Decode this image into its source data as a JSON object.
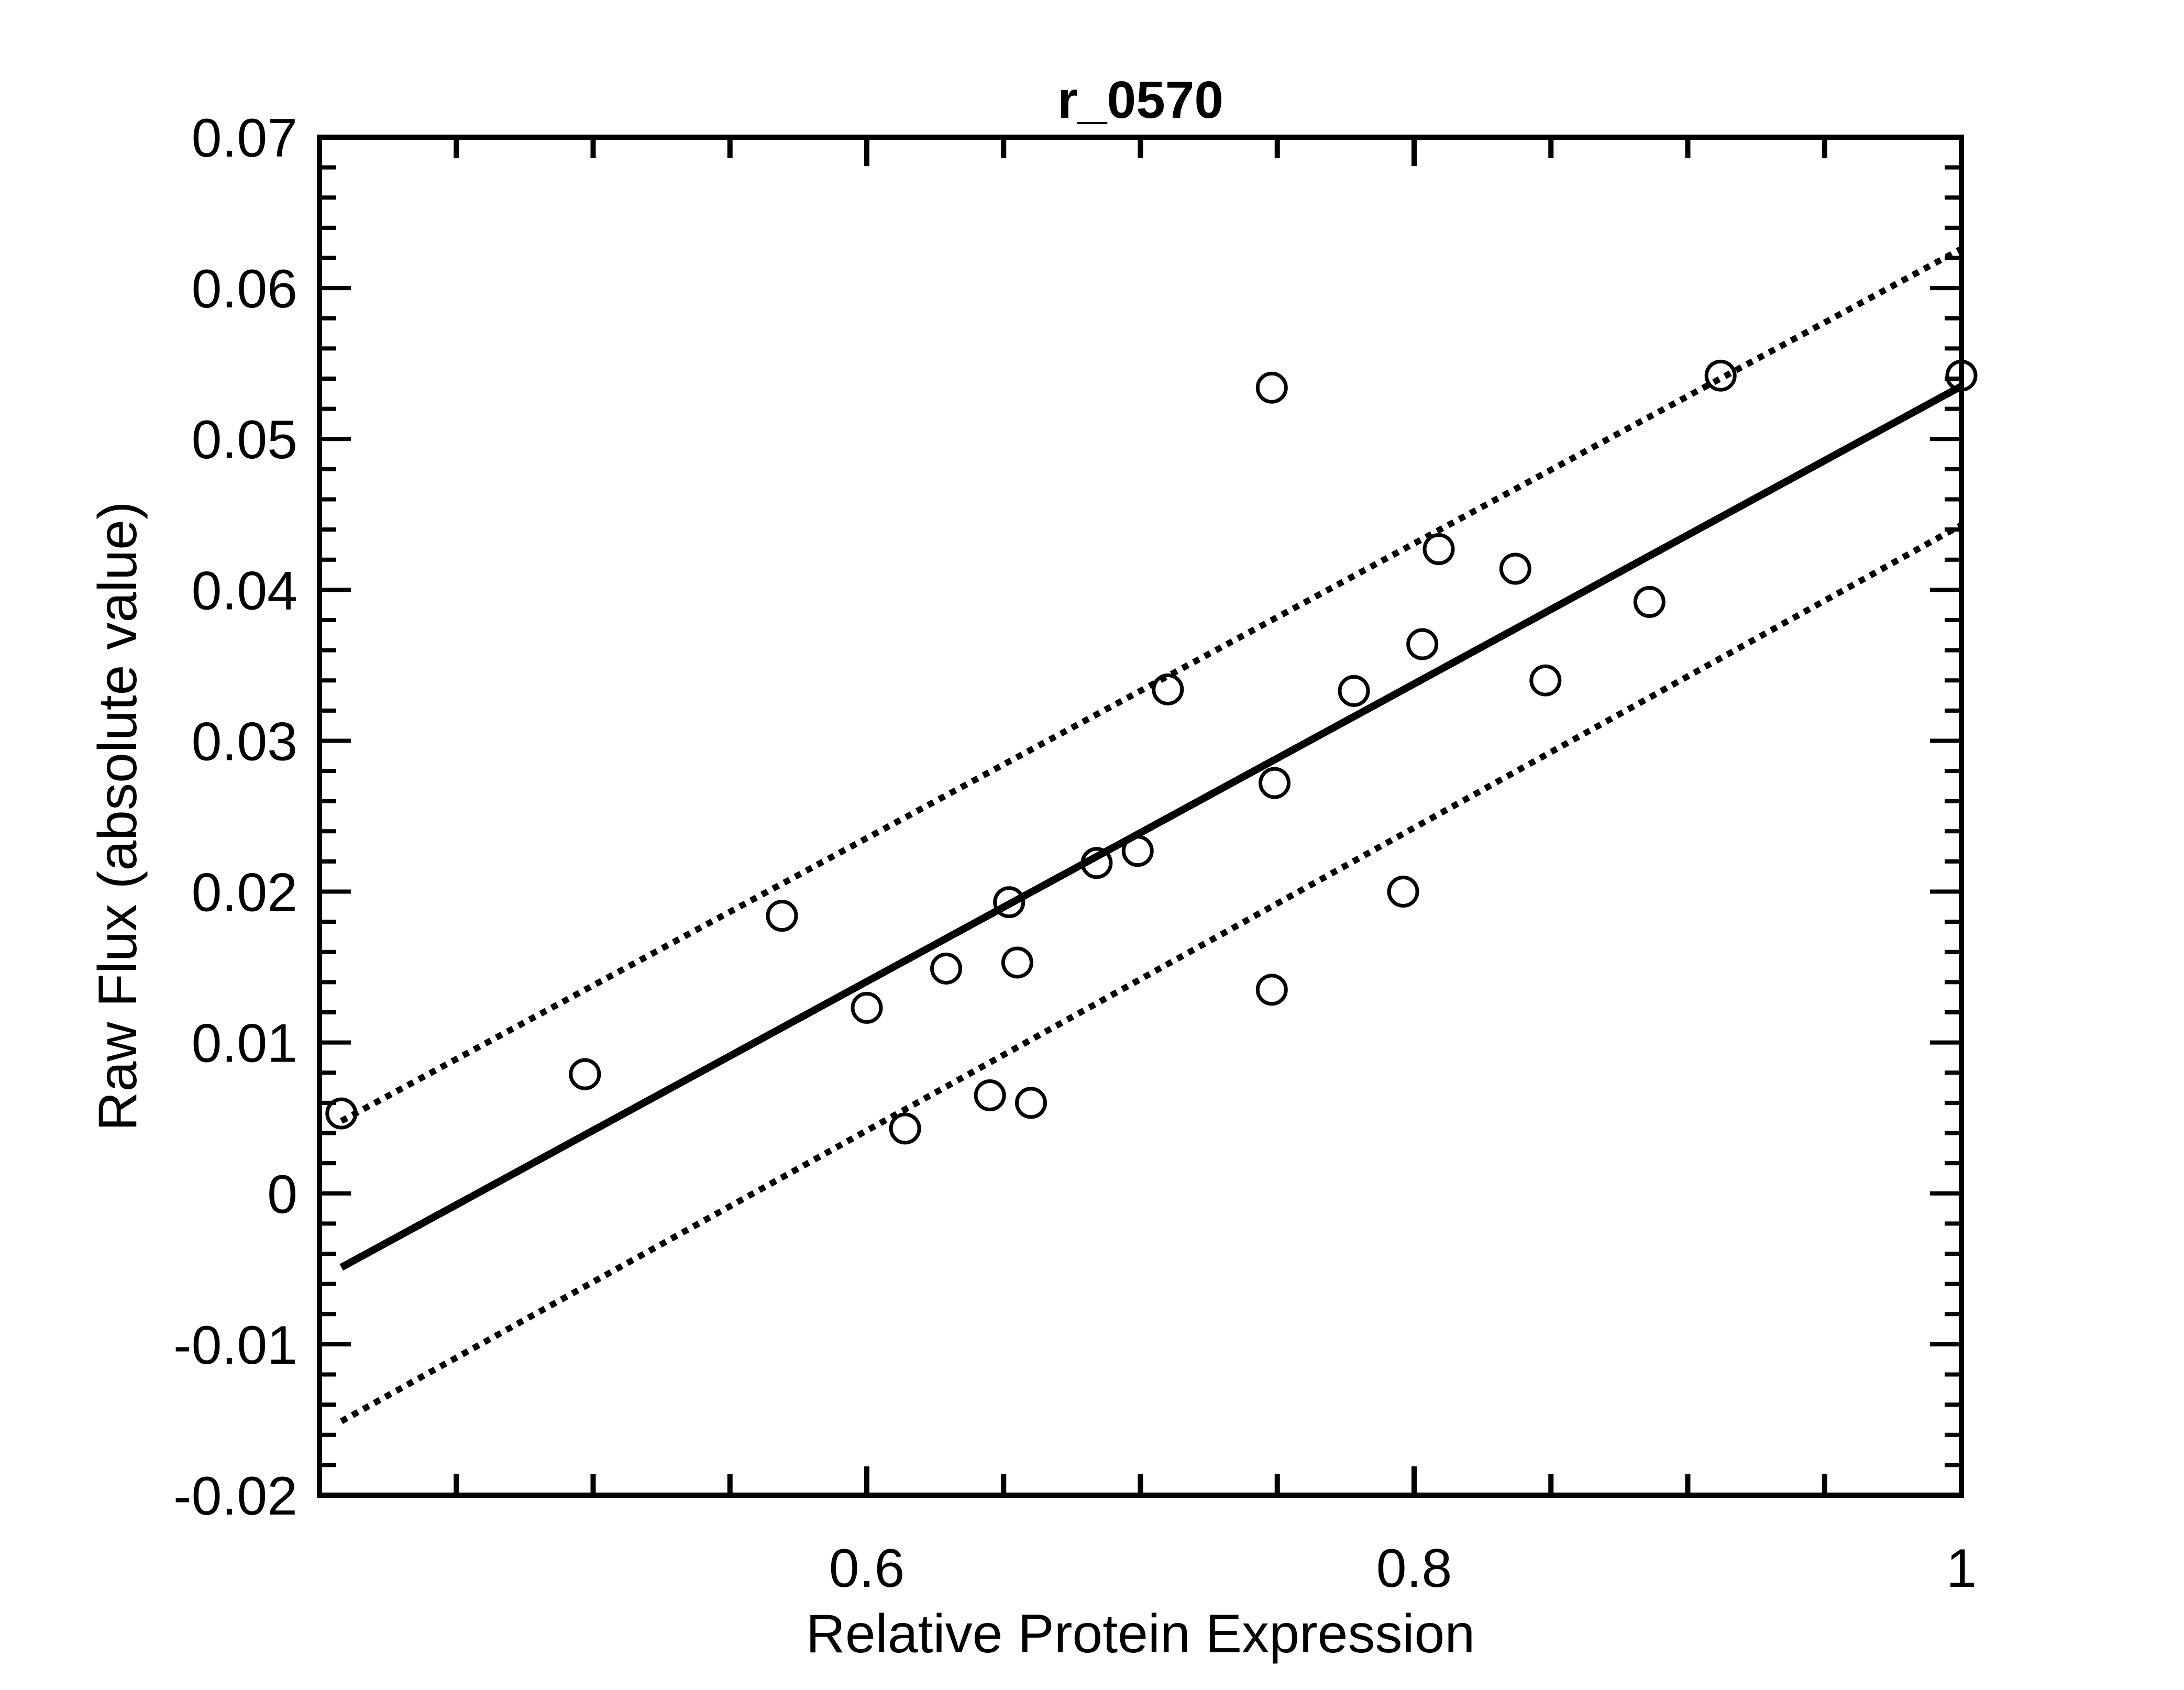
{
  "chart_data": {
    "type": "scatter",
    "title": "r_0570",
    "xlabel": "Relative Protein Expression",
    "ylabel": "Raw Flux (absolute value)",
    "xlim": [
      0.4,
      1.0
    ],
    "ylim": [
      -0.02,
      0.07
    ],
    "x_tick_labels": [
      {
        "value": 0.6,
        "label": "0.6"
      },
      {
        "value": 0.8,
        "label": "0.8"
      },
      {
        "value": 1.0,
        "label": "1"
      }
    ],
    "y_tick_labels": [
      {
        "value": -0.02,
        "label": "-0.02"
      },
      {
        "value": -0.01,
        "label": "-0.01"
      },
      {
        "value": 0.0,
        "label": "0"
      },
      {
        "value": 0.01,
        "label": "0.01"
      },
      {
        "value": 0.02,
        "label": "0.02"
      },
      {
        "value": 0.03,
        "label": "0.03"
      },
      {
        "value": 0.04,
        "label": "0.04"
      },
      {
        "value": 0.05,
        "label": "0.05"
      },
      {
        "value": 0.06,
        "label": "0.06"
      },
      {
        "value": 0.07,
        "label": "0.07"
      }
    ],
    "x_minor_tick_step": 0.05,
    "y_minor_tick_step": 0.002,
    "grid": false,
    "points": [
      {
        "x": 0.408,
        "y": 0.0053
      },
      {
        "x": 0.497,
        "y": 0.0079
      },
      {
        "x": 0.569,
        "y": 0.0184
      },
      {
        "x": 0.6,
        "y": 0.0123
      },
      {
        "x": 0.614,
        "y": 0.0043
      },
      {
        "x": 0.629,
        "y": 0.0149
      },
      {
        "x": 0.645,
        "y": 0.0065
      },
      {
        "x": 0.652,
        "y": 0.0193
      },
      {
        "x": 0.655,
        "y": 0.0153
      },
      {
        "x": 0.66,
        "y": 0.006
      },
      {
        "x": 0.684,
        "y": 0.0219
      },
      {
        "x": 0.699,
        "y": 0.0227
      },
      {
        "x": 0.71,
        "y": 0.0334
      },
      {
        "x": 0.748,
        "y": 0.0534
      },
      {
        "x": 0.748,
        "y": 0.0135
      },
      {
        "x": 0.749,
        "y": 0.0272
      },
      {
        "x": 0.778,
        "y": 0.0333
      },
      {
        "x": 0.796,
        "y": 0.02
      },
      {
        "x": 0.803,
        "y": 0.0364
      },
      {
        "x": 0.809,
        "y": 0.0427
      },
      {
        "x": 0.837,
        "y": 0.0414
      },
      {
        "x": 0.848,
        "y": 0.034
      },
      {
        "x": 0.886,
        "y": 0.0392
      },
      {
        "x": 0.912,
        "y": 0.0542
      },
      {
        "x": 1.0,
        "y": 0.0542
      }
    ],
    "fit_line": {
      "x": [
        0.408,
        1.0
      ],
      "y": [
        -0.0049,
        0.0535
      ]
    },
    "confidence_upper": {
      "x": [
        0.408,
        1.0
      ],
      "y": [
        0.0048,
        0.0626
      ]
    },
    "confidence_lower": {
      "x": [
        0.408,
        1.0
      ],
      "y": [
        -0.0151,
        0.0443
      ]
    }
  }
}
